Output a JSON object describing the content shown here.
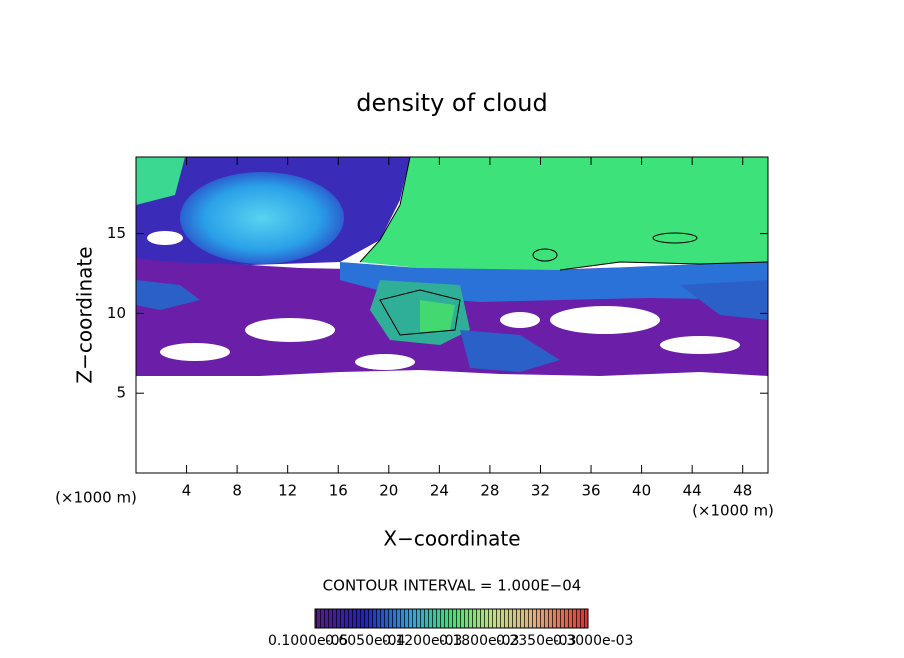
{
  "chart_data": {
    "type": "contour",
    "title": "density of cloud",
    "xlabel": "X−coordinate",
    "ylabel": "Z−coordinate",
    "x_unit": "(×1000 m)",
    "y_unit": "(×1000 m)",
    "xlim": [
      0,
      50
    ],
    "ylim": [
      0,
      19.8
    ],
    "xticks": [
      4,
      8,
      12,
      16,
      20,
      24,
      28,
      32,
      36,
      40,
      44,
      48
    ],
    "yticks": [
      5,
      10,
      15
    ],
    "annotation": "CONTOUR INTERVAL = 1.000E−04",
    "colorbar_labels": [
      "0.1000e-05",
      "0.6050e-04",
      "0.1200e-03",
      "0.1800e-03",
      "0.2350e-03",
      "0.3000e-03"
    ]
  }
}
